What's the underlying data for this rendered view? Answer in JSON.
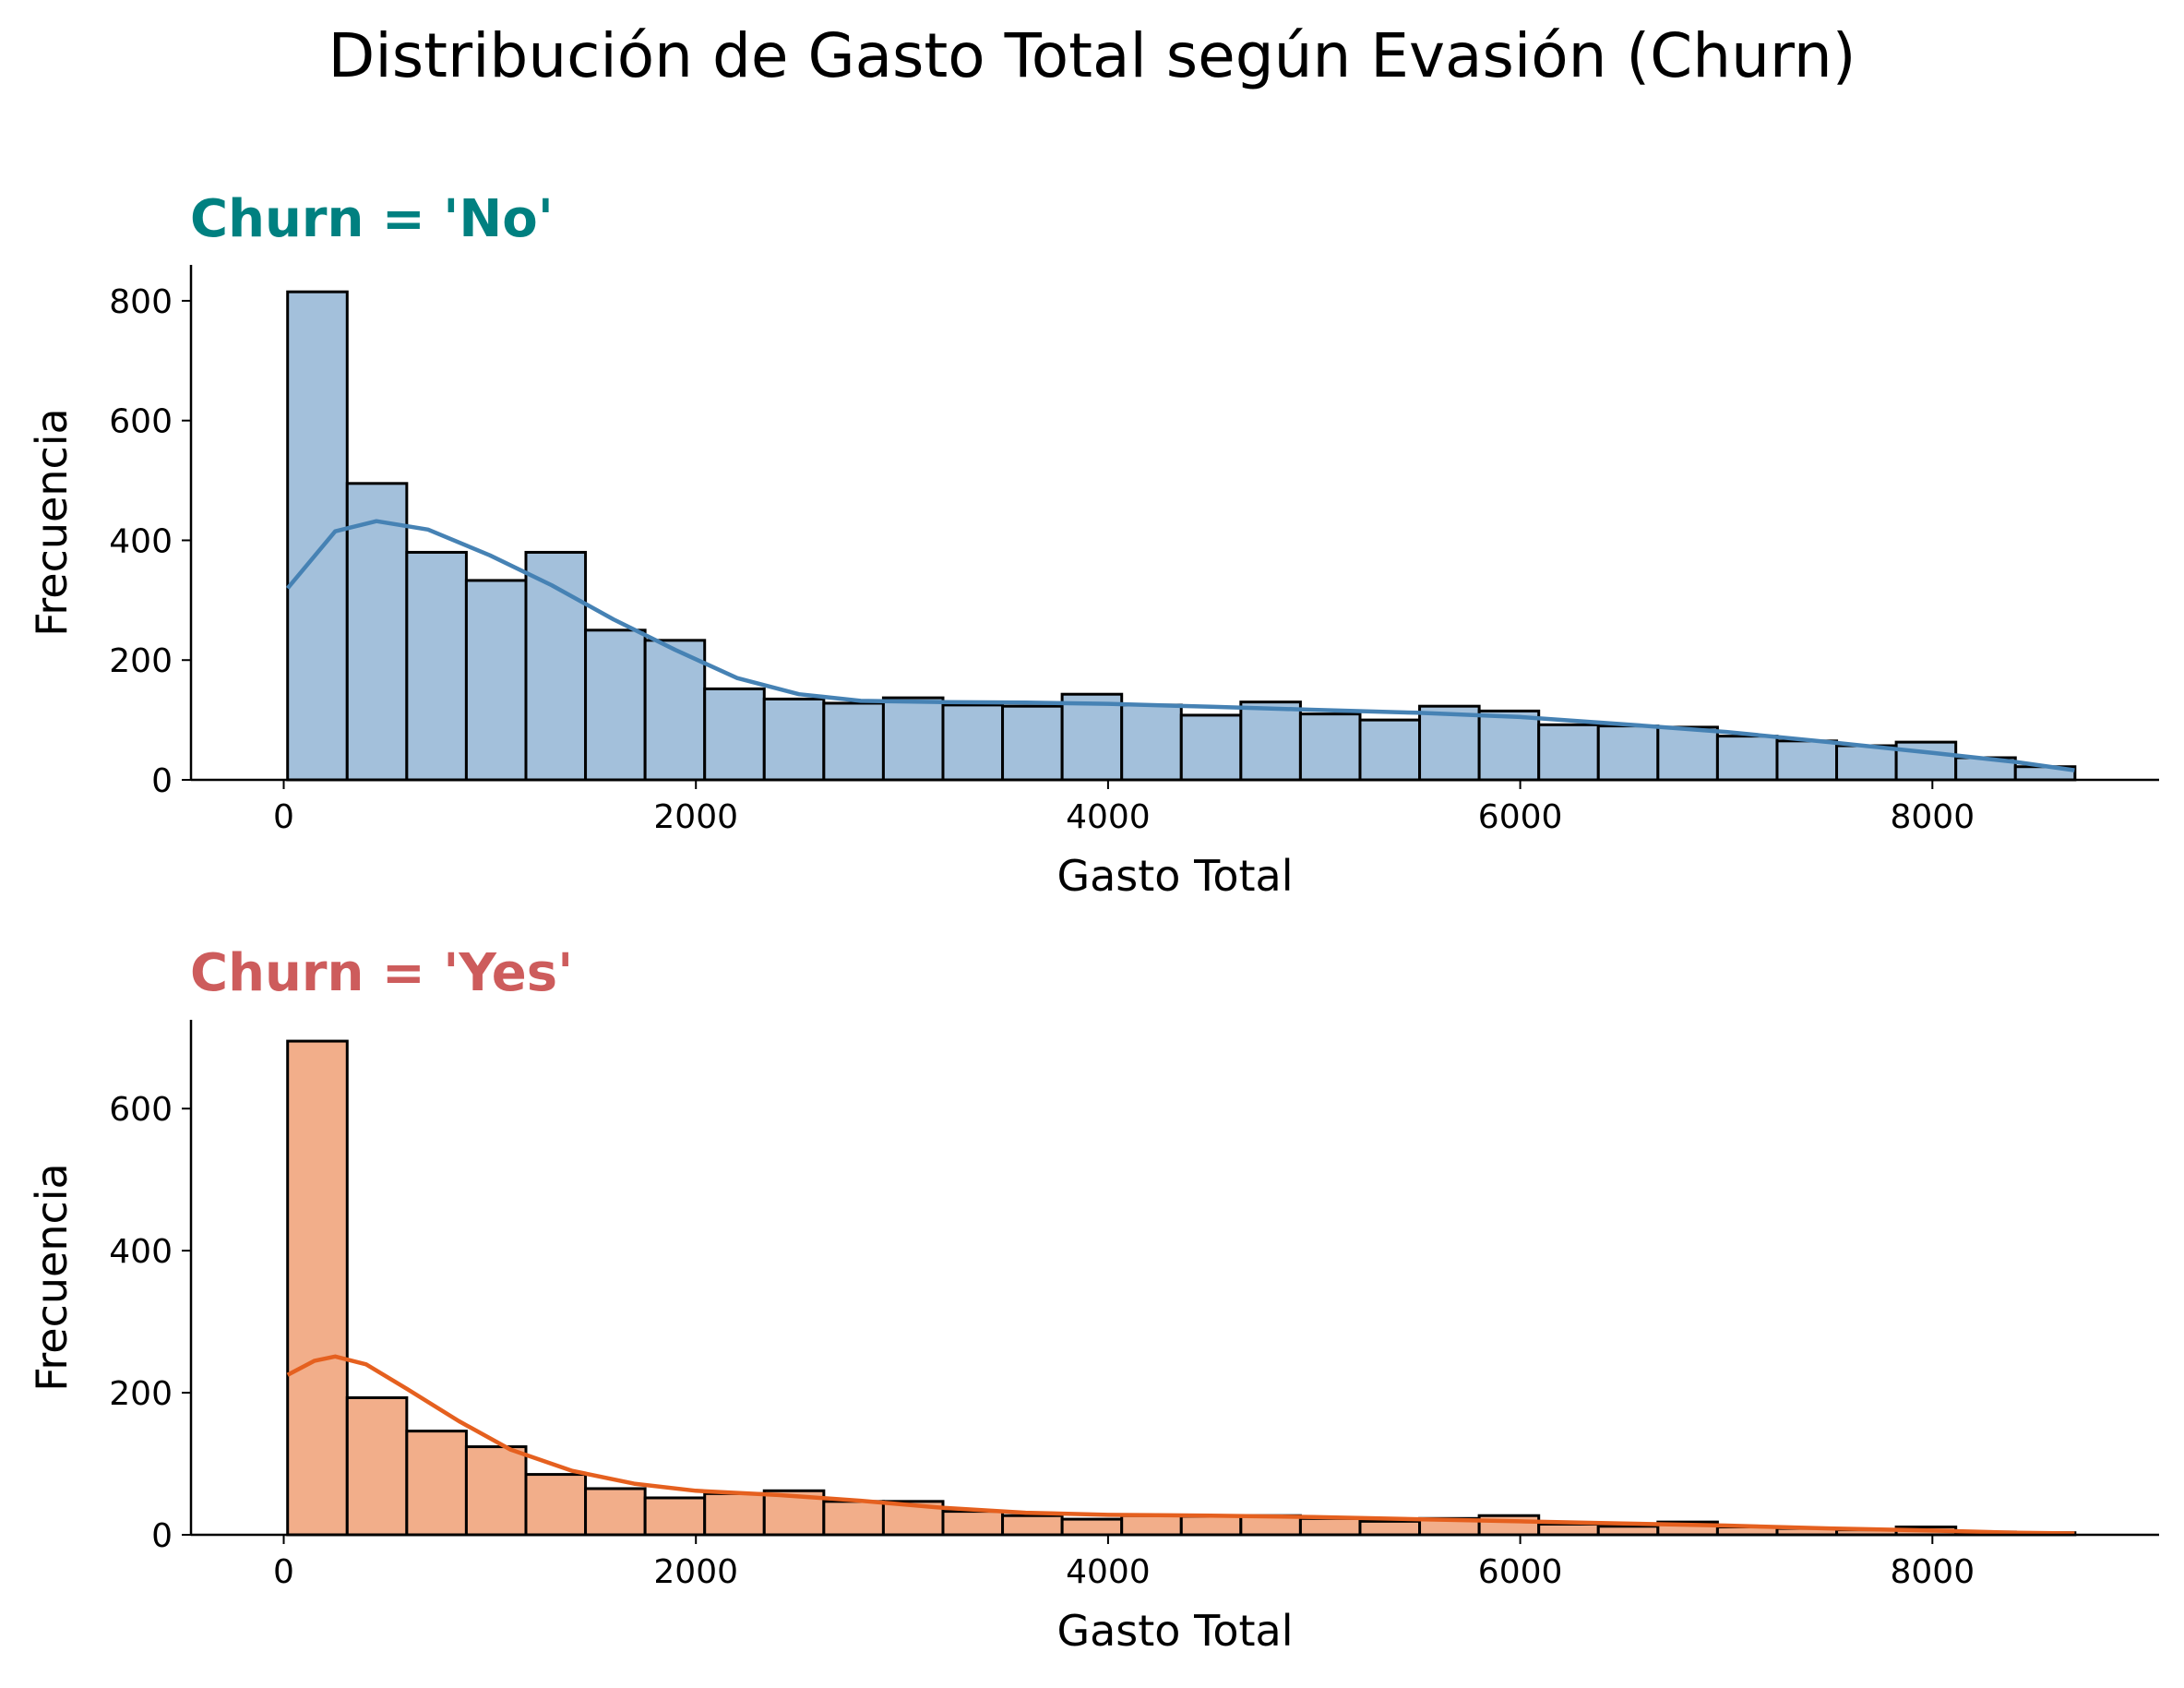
{
  "suptitle": "Distribución de Gasto Total según Evasión (Churn)",
  "chart_data": [
    {
      "type": "bar",
      "subtype": "histogram",
      "title": "Churn = 'No'",
      "title_color": "#008080",
      "xlabel": "Gasto Total",
      "ylabel": "Frecuencia",
      "xlim": [
        -450,
        9100
      ],
      "ylim": [
        0,
        860
      ],
      "xticks": [
        0,
        2000,
        4000,
        6000,
        8000
      ],
      "yticks": [
        0,
        200,
        400,
        600,
        800
      ],
      "bar_color": "#a3c0db",
      "kde_color": "#4682b4",
      "bin_start": 18.8,
      "bin_width": 289.1,
      "values": [
        815,
        495,
        380,
        333,
        380,
        250,
        233,
        152,
        135,
        128,
        137,
        125,
        123,
        143,
        125,
        108,
        130,
        110,
        100,
        123,
        115,
        92,
        90,
        88,
        73,
        65,
        57,
        63,
        37,
        22
      ],
      "kde": [
        [
          18.8,
          320
        ],
        [
          250,
          415
        ],
        [
          450,
          432
        ],
        [
          700,
          418
        ],
        [
          1000,
          375
        ],
        [
          1300,
          325
        ],
        [
          1600,
          268
        ],
        [
          1900,
          217
        ],
        [
          2200,
          170
        ],
        [
          2500,
          143
        ],
        [
          2800,
          132
        ],
        [
          3200,
          130
        ],
        [
          3600,
          129
        ],
        [
          4000,
          127
        ],
        [
          4500,
          122
        ],
        [
          5000,
          117
        ],
        [
          5500,
          112
        ],
        [
          6000,
          105
        ],
        [
          6500,
          93
        ],
        [
          7000,
          80
        ],
        [
          7500,
          63
        ],
        [
          8000,
          45
        ],
        [
          8400,
          30
        ],
        [
          8690,
          16
        ]
      ]
    },
    {
      "type": "bar",
      "subtype": "histogram",
      "title": "Churn = 'Yes'",
      "title_color": "#cd5c5c",
      "xlabel": "Gasto Total",
      "ylabel": "Frecuencia",
      "xlim": [
        -450,
        9100
      ],
      "ylim": [
        0,
        725
      ],
      "xticks": [
        0,
        2000,
        4000,
        6000,
        8000
      ],
      "yticks": [
        0,
        200,
        400,
        600
      ],
      "bar_color": "#f2ae8a",
      "kde_color": "#e5601f",
      "bin_start": 18.8,
      "bin_width": 289.1,
      "values": [
        695,
        193,
        146,
        124,
        85,
        65,
        52,
        58,
        62,
        47,
        47,
        33,
        27,
        22,
        27,
        26,
        27,
        23,
        19,
        23,
        27,
        15,
        12,
        18,
        11,
        9,
        7,
        11,
        4,
        3
      ],
      "kde": [
        [
          18.8,
          225
        ],
        [
          150,
          245
        ],
        [
          250,
          251
        ],
        [
          400,
          240
        ],
        [
          600,
          205
        ],
        [
          850,
          160
        ],
        [
          1100,
          120
        ],
        [
          1400,
          90
        ],
        [
          1700,
          72
        ],
        [
          2000,
          62
        ],
        [
          2400,
          56
        ],
        [
          2800,
          48
        ],
        [
          3200,
          38
        ],
        [
          3600,
          31
        ],
        [
          4000,
          28
        ],
        [
          4500,
          27
        ],
        [
          5000,
          25
        ],
        [
          5500,
          22
        ],
        [
          6000,
          19
        ],
        [
          6500,
          16
        ],
        [
          7000,
          13
        ],
        [
          7500,
          9
        ],
        [
          8000,
          6
        ],
        [
          8400,
          3
        ],
        [
          8690,
          2
        ]
      ]
    }
  ]
}
